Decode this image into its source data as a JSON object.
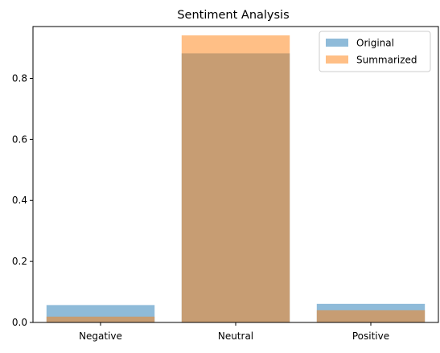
{
  "chart_data": {
    "type": "bar",
    "title": "Sentiment Analysis",
    "xlabel": "",
    "ylabel": "",
    "categories": [
      "Negative",
      "Neutral",
      "Positive"
    ],
    "series": [
      {
        "name": "Original",
        "values": [
          0.057,
          0.882,
          0.061
        ],
        "color": "#1f77b4",
        "alpha": 0.5
      },
      {
        "name": "Summarized",
        "values": [
          0.019,
          0.941,
          0.04
        ],
        "color": "#ff7f0e",
        "alpha": 0.5
      }
    ],
    "ylim": [
      0,
      0.97
    ],
    "yticks": [
      0.0,
      0.2,
      0.4,
      0.6,
      0.8
    ],
    "ytick_labels": [
      "0.0",
      "0.2",
      "0.4",
      "0.6",
      "0.8"
    ],
    "grid": false,
    "legend_position": "top-right"
  }
}
